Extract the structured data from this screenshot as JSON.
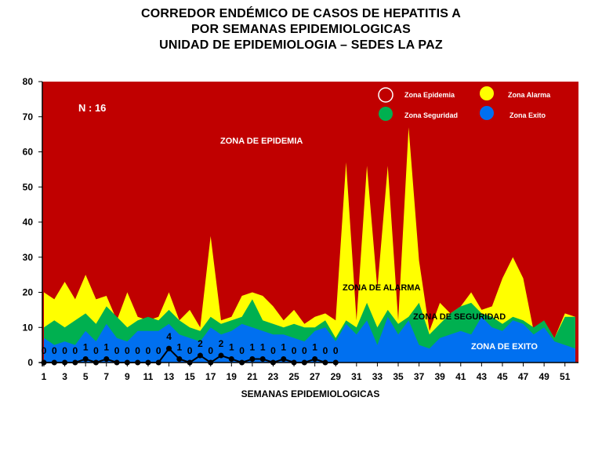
{
  "title_lines": [
    "CORREDOR ENDÉMICO DE CASOS DE HEPATITIS A",
    "POR SEMANAS EPIDEMIOLOGICAS",
    "UNIDAD DE EPIDEMIOLOGIA – SEDES LA PAZ"
  ],
  "n_label": "N : 16",
  "legend": {
    "epidemia": "Zona Epidemia",
    "alarma": "Zona Alarma",
    "seguridad": "Zona Seguridad",
    "exito": "Zona Exito"
  },
  "zone_labels": {
    "epidemia": "ZONA DE EPIDEMIA",
    "alarma": "ZONA DE ALARMA",
    "seguridad": "ZONA DE  SEGURIDAD",
    "exito": "ZONA DE  EXITO"
  },
  "colors": {
    "epidemia": "#c00000",
    "alarma": "#ffff00",
    "seguridad": "#00b050",
    "exito": "#0070f0",
    "cases": "#000000"
  },
  "chart_data": {
    "type": "area",
    "xlabel": "SEMANAS EPIDEMIOLOGICAS",
    "ylabel": "",
    "ylim": [
      0,
      80
    ],
    "xlim": [
      1,
      52
    ],
    "yticks": [
      0,
      10,
      20,
      30,
      40,
      50,
      60,
      70,
      80
    ],
    "xticks": [
      1,
      3,
      5,
      7,
      9,
      11,
      13,
      15,
      17,
      19,
      21,
      23,
      25,
      27,
      29,
      31,
      33,
      35,
      37,
      39,
      41,
      43,
      45,
      47,
      49,
      51
    ],
    "x": [
      1,
      2,
      3,
      4,
      5,
      6,
      7,
      8,
      9,
      10,
      11,
      12,
      13,
      14,
      15,
      16,
      17,
      18,
      19,
      20,
      21,
      22,
      23,
      24,
      25,
      26,
      27,
      28,
      29,
      30,
      31,
      32,
      33,
      34,
      35,
      36,
      37,
      38,
      39,
      40,
      41,
      42,
      43,
      44,
      45,
      46,
      47,
      48,
      49,
      50,
      51,
      52
    ],
    "series": [
      {
        "name": "Zona Exito",
        "values": [
          7,
          5,
          6,
          5,
          9,
          6,
          11,
          7,
          6,
          9,
          9,
          9,
          11,
          8,
          7,
          6,
          10,
          8,
          9,
          11,
          10,
          9,
          8,
          8,
          7,
          6,
          9,
          10,
          6,
          11,
          8,
          12,
          5,
          13,
          8,
          12,
          5,
          4,
          7,
          8,
          9,
          8,
          13,
          10,
          9,
          12,
          11,
          8,
          10,
          6,
          5,
          4
        ]
      },
      {
        "name": "Zona Seguridad",
        "values": [
          10,
          12,
          10,
          12,
          14,
          11,
          16,
          13,
          10,
          12,
          13,
          12,
          15,
          12,
          10,
          9,
          13,
          11,
          12,
          13,
          18,
          12,
          11,
          10,
          11,
          10,
          10,
          12,
          7,
          12,
          10,
          17,
          10,
          15,
          11,
          13,
          17,
          8,
          11,
          14,
          16,
          17,
          14,
          13,
          11,
          13,
          12,
          10,
          12,
          7,
          13,
          13
        ]
      },
      {
        "name": "Zona Alarma",
        "values": [
          20,
          18,
          23,
          18,
          25,
          18,
          19,
          12,
          20,
          13,
          12,
          13,
          20,
          12,
          15,
          10,
          36,
          12,
          13,
          19,
          20,
          19,
          16,
          12,
          15,
          11,
          13,
          14,
          12,
          57,
          12,
          56,
          21,
          56,
          12,
          67,
          29,
          9,
          17,
          14,
          16,
          20,
          15,
          16,
          24,
          30,
          24,
          9,
          11,
          7,
          14,
          13
        ]
      },
      {
        "name": "Zona Epidemia",
        "values": [
          80,
          80,
          80,
          80,
          80,
          80,
          80,
          80,
          80,
          80,
          80,
          80,
          80,
          80,
          80,
          80,
          80,
          80,
          80,
          80,
          80,
          80,
          80,
          80,
          80,
          80,
          80,
          80,
          80,
          80,
          80,
          80,
          80,
          80,
          80,
          80,
          80,
          80,
          80,
          80,
          80,
          80,
          80,
          80,
          80,
          80,
          80,
          80,
          80,
          80,
          80,
          80
        ]
      }
    ],
    "cases": {
      "x": [
        1,
        2,
        3,
        4,
        5,
        6,
        7,
        8,
        9,
        10,
        11,
        12,
        13,
        14,
        15,
        16,
        17,
        18,
        19,
        20,
        21,
        22,
        23,
        24,
        25,
        26,
        27,
        28,
        29
      ],
      "values": [
        0,
        0,
        0,
        0,
        1,
        0,
        1,
        0,
        0,
        0,
        0,
        0,
        4,
        1,
        0,
        2,
        0,
        2,
        1,
        0,
        1,
        1,
        0,
        1,
        0,
        0,
        1,
        0,
        0
      ]
    }
  }
}
